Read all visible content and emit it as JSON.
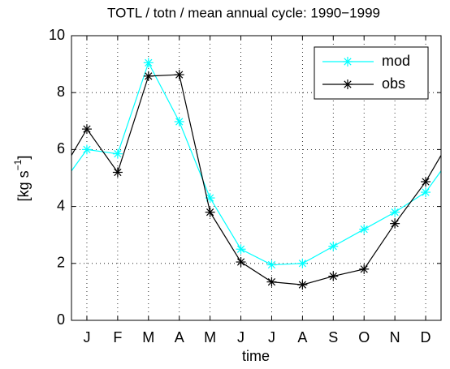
{
  "chart_data": {
    "type": "line",
    "title": "TOTL / totn / mean annual cycle: 1990−1999",
    "xlabel": "time",
    "ylabel": [
      "[kg s",
      "−1",
      "]"
    ],
    "categories": [
      "J",
      "F",
      "M",
      "A",
      "M",
      "J",
      "J",
      "A",
      "S",
      "O",
      "N",
      "D"
    ],
    "series": [
      {
        "name": "mod",
        "color": "#00ffff",
        "values": [
          6.0,
          5.85,
          9.05,
          6.98,
          4.3,
          2.5,
          1.95,
          2.0,
          2.6,
          3.2,
          3.8,
          4.5
        ]
      },
      {
        "name": "obs",
        "color": "#000000",
        "values": [
          6.72,
          5.2,
          8.58,
          8.63,
          3.8,
          2.05,
          1.35,
          1.25,
          1.55,
          1.8,
          3.4,
          4.87
        ]
      }
    ],
    "ylim": [
      0,
      10
    ],
    "yticks": [
      0,
      2,
      4,
      6,
      8,
      10
    ],
    "grid": true,
    "legend": "northeast"
  }
}
